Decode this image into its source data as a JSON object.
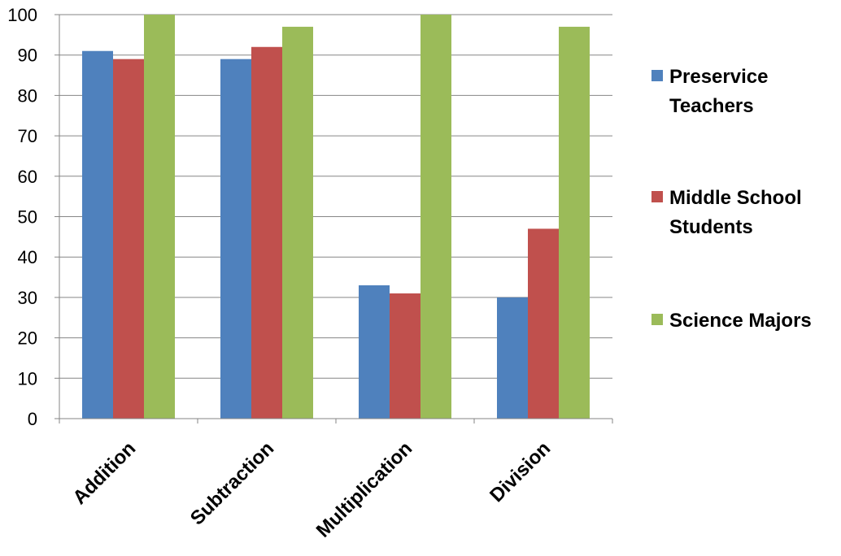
{
  "chart_data": {
    "type": "bar",
    "title": "",
    "xlabel": "",
    "ylabel": "",
    "categories": [
      "Addition",
      "Subtraction",
      "Multiplication",
      "Division"
    ],
    "ylim": [
      0,
      100
    ],
    "yticks": [
      0,
      10,
      20,
      30,
      40,
      50,
      60,
      70,
      80,
      90,
      100
    ],
    "grid": true,
    "legend_position": "right",
    "series": [
      {
        "name": "Preservice Teachers",
        "legend_lines": [
          "Preservice",
          "Teachers"
        ],
        "color": "#4F81BD",
        "values": [
          91,
          89,
          33,
          30
        ]
      },
      {
        "name": "Middle School Students",
        "legend_lines": [
          "Middle School",
          "Students"
        ],
        "color": "#C0504D",
        "values": [
          89,
          92,
          31,
          47
        ]
      },
      {
        "name": "Science Majors",
        "legend_lines": [
          "Science Majors"
        ],
        "color": "#9BBB59",
        "values": [
          100,
          97,
          100,
          97
        ]
      }
    ]
  }
}
